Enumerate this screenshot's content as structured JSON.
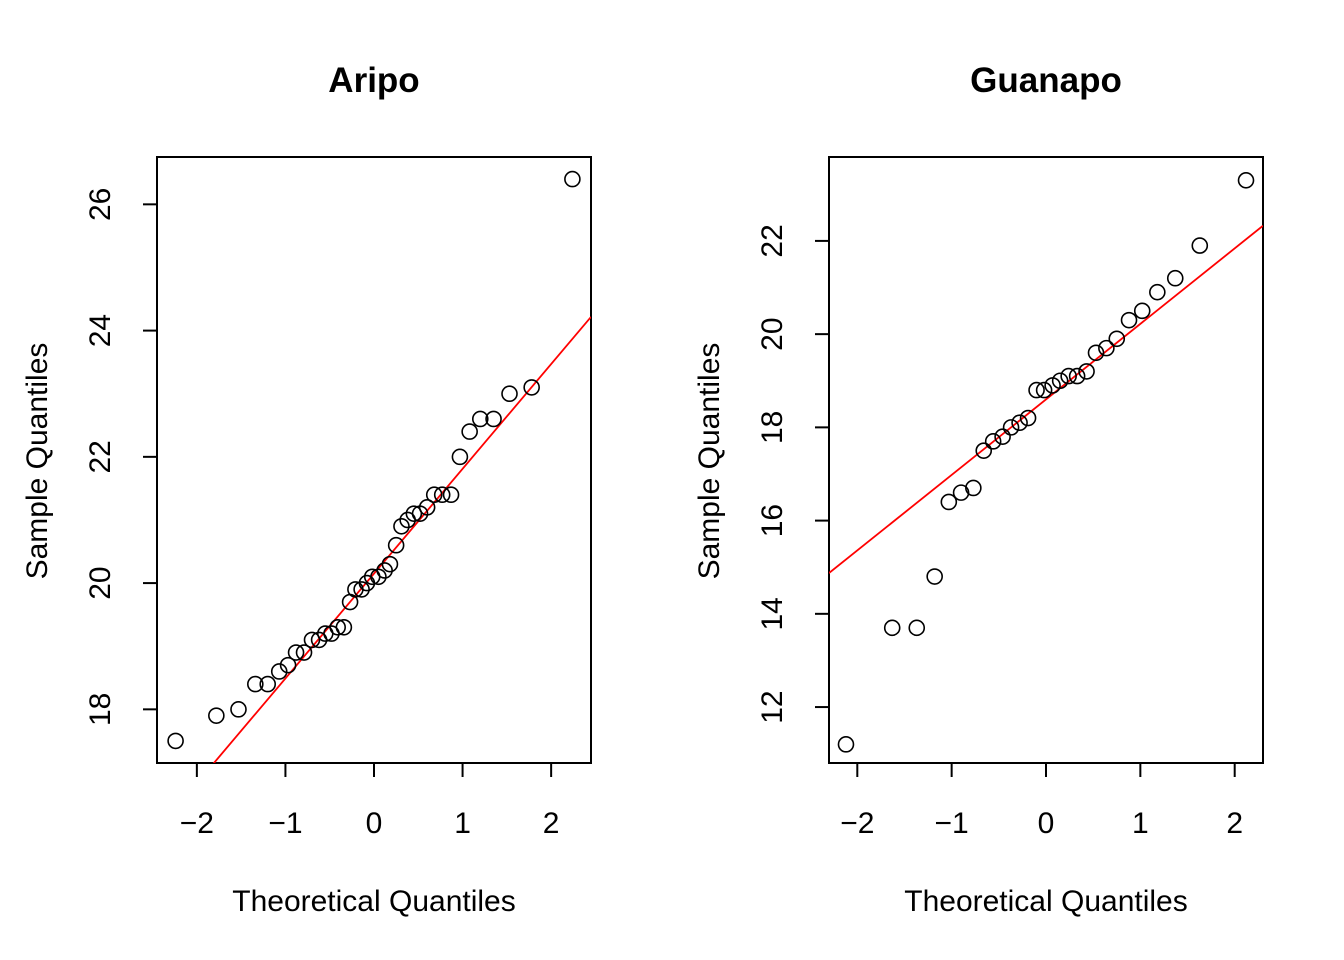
{
  "colors": {
    "points": "#000000",
    "reference_line": "#ff0000",
    "background": "#ffffff"
  },
  "chart_data": [
    {
      "type": "scatter",
      "title": "Aripo",
      "xlabel": "Theoretical Quantiles",
      "ylabel": "Sample Quantiles",
      "xlim": [
        -2.45,
        2.45
      ],
      "ylim": [
        17.15,
        26.75
      ],
      "xticks": [
        -2,
        -1,
        0,
        1,
        2
      ],
      "yticks": [
        18,
        20,
        22,
        24,
        26
      ],
      "grid": false,
      "reference_line": {
        "slope": 1.66,
        "intercept": 20.15
      },
      "points": [
        [
          -2.24,
          17.5
        ],
        [
          -1.78,
          17.9
        ],
        [
          -1.53,
          18.0
        ],
        [
          -1.34,
          18.4
        ],
        [
          -1.2,
          18.4
        ],
        [
          -1.07,
          18.6
        ],
        [
          -0.97,
          18.7
        ],
        [
          -0.88,
          18.9
        ],
        [
          -0.79,
          18.9
        ],
        [
          -0.7,
          19.1
        ],
        [
          -0.62,
          19.1
        ],
        [
          -0.55,
          19.2
        ],
        [
          -0.48,
          19.2
        ],
        [
          -0.41,
          19.3
        ],
        [
          -0.34,
          19.3
        ],
        [
          -0.27,
          19.7
        ],
        [
          -0.21,
          19.9
        ],
        [
          -0.14,
          19.9
        ],
        [
          -0.08,
          20.0
        ],
        [
          -0.02,
          20.1
        ],
        [
          0.05,
          20.1
        ],
        [
          0.12,
          20.2
        ],
        [
          0.18,
          20.3
        ],
        [
          0.25,
          20.6
        ],
        [
          0.31,
          20.9
        ],
        [
          0.38,
          21.0
        ],
        [
          0.45,
          21.1
        ],
        [
          0.52,
          21.1
        ],
        [
          0.6,
          21.2
        ],
        [
          0.68,
          21.4
        ],
        [
          0.77,
          21.4
        ],
        [
          0.87,
          21.4
        ],
        [
          0.97,
          22.0
        ],
        [
          1.08,
          22.4
        ],
        [
          1.2,
          22.6
        ],
        [
          1.35,
          22.6
        ],
        [
          1.53,
          23.0
        ],
        [
          1.78,
          23.1
        ],
        [
          2.24,
          26.4
        ]
      ]
    },
    {
      "type": "scatter",
      "title": "Guanapo",
      "xlabel": "Theoretical Quantiles",
      "ylabel": "Sample Quantiles",
      "xlim": [
        -2.3,
        2.3
      ],
      "ylim": [
        10.8,
        23.8
      ],
      "xticks": [
        -2,
        -1,
        0,
        1,
        2
      ],
      "yticks": [
        12,
        14,
        16,
        18,
        20,
        22
      ],
      "grid": false,
      "reference_line": {
        "slope": 1.62,
        "intercept": 18.6
      },
      "points": [
        [
          -2.12,
          11.2
        ],
        [
          -1.63,
          13.7
        ],
        [
          -1.37,
          13.7
        ],
        [
          -1.18,
          14.8
        ],
        [
          -1.03,
          16.4
        ],
        [
          -0.9,
          16.6
        ],
        [
          -0.77,
          16.7
        ],
        [
          -0.66,
          17.5
        ],
        [
          -0.56,
          17.7
        ],
        [
          -0.46,
          17.8
        ],
        [
          -0.37,
          18.0
        ],
        [
          -0.28,
          18.1
        ],
        [
          -0.19,
          18.2
        ],
        [
          -0.1,
          18.8
        ],
        [
          -0.02,
          18.8
        ],
        [
          0.07,
          18.9
        ],
        [
          0.15,
          19.0
        ],
        [
          0.24,
          19.1
        ],
        [
          0.33,
          19.1
        ],
        [
          0.43,
          19.2
        ],
        [
          0.53,
          19.6
        ],
        [
          0.64,
          19.7
        ],
        [
          0.75,
          19.9
        ],
        [
          0.88,
          20.3
        ],
        [
          1.02,
          20.5
        ],
        [
          1.18,
          20.9
        ],
        [
          1.37,
          21.2
        ],
        [
          1.63,
          21.9
        ],
        [
          2.12,
          23.3
        ]
      ]
    }
  ]
}
